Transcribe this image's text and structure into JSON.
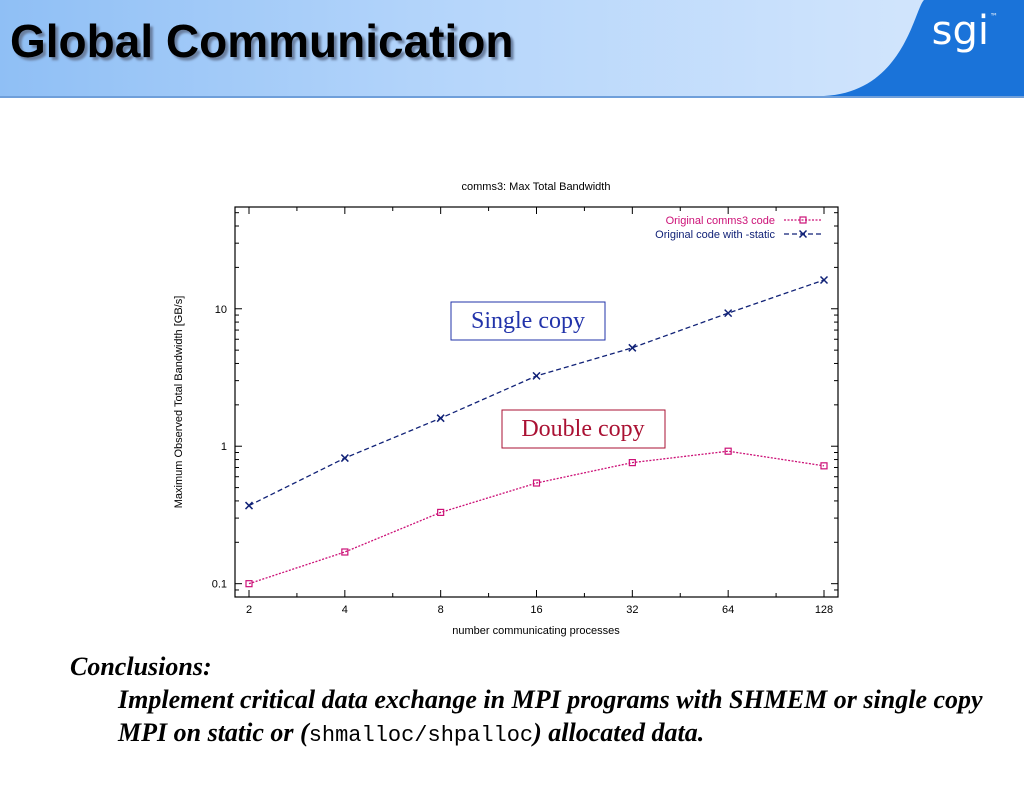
{
  "slide": {
    "title": "Global Communication",
    "logo": "sgi",
    "logo_tm": "™"
  },
  "chart_data": {
    "type": "line",
    "title": "comms3: Max Total Bandwidth",
    "xlabel": "number communicating processes",
    "ylabel": "Maximum Observed Total Bandwidth [GB/s]",
    "x_scale": "log2",
    "y_scale": "log10",
    "x": [
      2,
      4,
      8,
      16,
      32,
      64,
      128
    ],
    "x_tick_labels": [
      "2",
      "4",
      "8",
      "16",
      "32",
      "64",
      "128"
    ],
    "y_ticks": [
      0.1,
      1,
      10
    ],
    "y_tick_labels": [
      "0.1",
      "1",
      "10"
    ],
    "xlim": [
      2,
      128
    ],
    "ylim": [
      0.08,
      55
    ],
    "grid": false,
    "legend_position": "top-right",
    "series": [
      {
        "name": "Original comms3 code",
        "values": [
          0.1,
          0.17,
          0.33,
          0.54,
          0.76,
          0.92,
          0.72
        ],
        "color": "#cc1177",
        "marker": "square",
        "linestyle": "dotted"
      },
      {
        "name": "Original code with -static",
        "values": [
          0.37,
          0.82,
          1.6,
          3.25,
          5.2,
          9.3,
          16.2
        ],
        "color": "#112277",
        "marker": "x",
        "linestyle": "dashed"
      }
    ],
    "annotations": [
      {
        "text": "Single copy",
        "color": "#2233aa"
      },
      {
        "text": "Double copy",
        "color": "#aa1133"
      }
    ]
  },
  "conclusions": {
    "heading": "Conclusions:",
    "line1_text": "Implement critical data exchange in MPI programs with SHMEM or single copy MPI on static or (",
    "code": "shmalloc/shpalloc",
    "line_end": ") allocated data."
  }
}
